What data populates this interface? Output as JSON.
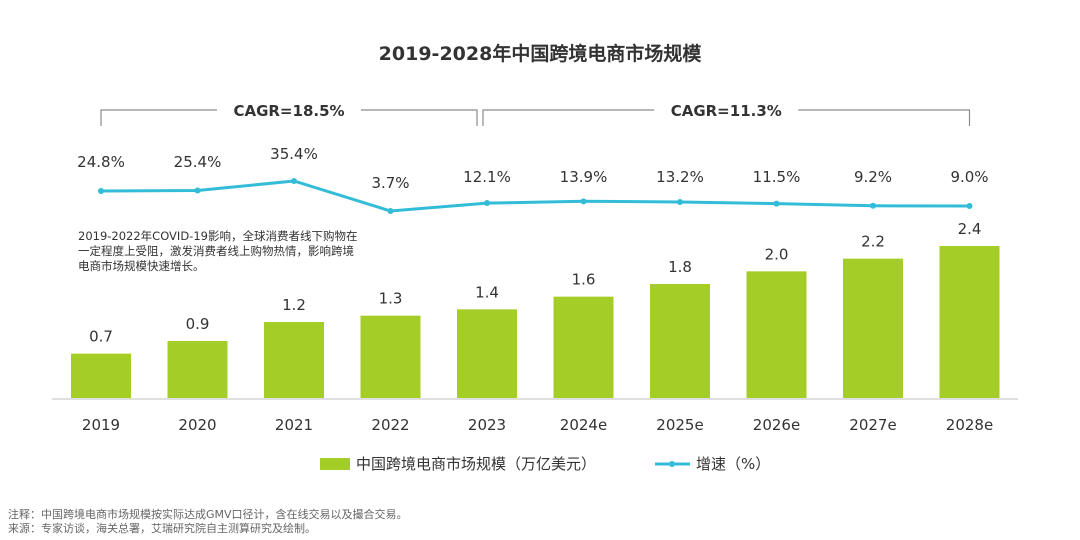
{
  "chart_data": {
    "type": "bar+line",
    "title": "2019-2028年中国跨境电商市场规模",
    "categories": [
      "2019",
      "2020",
      "2021",
      "2022",
      "2023",
      "2024e",
      "2025e",
      "2026e",
      "2027e",
      "2028e"
    ],
    "series": [
      {
        "name": "中国跨境电商市场规模（万亿美元）",
        "type": "bar",
        "values": [
          0.7,
          0.9,
          1.2,
          1.3,
          1.4,
          1.6,
          1.8,
          2.0,
          2.2,
          2.4
        ],
        "labels": [
          "0.7",
          "0.9",
          "1.2",
          "1.3",
          "1.4",
          "1.6",
          "1.8",
          "2.0",
          "2.2",
          "2.4"
        ]
      },
      {
        "name": "增速（%）",
        "type": "line",
        "values": [
          24.8,
          25.4,
          35.4,
          3.7,
          12.1,
          13.9,
          13.2,
          11.5,
          9.2,
          9.0
        ],
        "labels": [
          "24.8%",
          "25.4%",
          "35.4%",
          "3.7%",
          "12.1%",
          "13.9%",
          "13.2%",
          "11.5%",
          "9.2%",
          "9.0%"
        ]
      }
    ],
    "bar_ylim": [
      0,
      2.4
    ],
    "line_ylim": [
      0,
      35.4
    ],
    "cagr": [
      {
        "label": "CAGR=18.5%",
        "from": "2019",
        "to": "2023"
      },
      {
        "label": "CAGR=11.3%",
        "from": "2023",
        "to": "2028e"
      }
    ],
    "annotation": [
      "2019-2022年COVID-19影响，全球消费者线下购物在",
      "一定程度上受阻，激发消费者线上购物热情，影响跨境",
      "电商市场规模快速增长。"
    ],
    "legend": [
      {
        "label": "中国跨境电商市场规模（万亿美元）",
        "kind": "bar"
      },
      {
        "label": "增速（%）",
        "kind": "line"
      }
    ],
    "grid": false,
    "legend_position": "bottom-center"
  },
  "colors": {
    "bar": "#a4cd28",
    "line": "#33bcd8",
    "text": "#333333",
    "bracket": "#8c8c8c",
    "axis": "#bfbfbf",
    "note": "#666666"
  },
  "notes": {
    "line1": "注释：中国跨境电商市场规模按实际达成GMV口径计，含在线交易以及撮合交易。",
    "line2": "来源：专家访谈，海关总署，艾瑞研究院自主测算研究及绘制。"
  }
}
